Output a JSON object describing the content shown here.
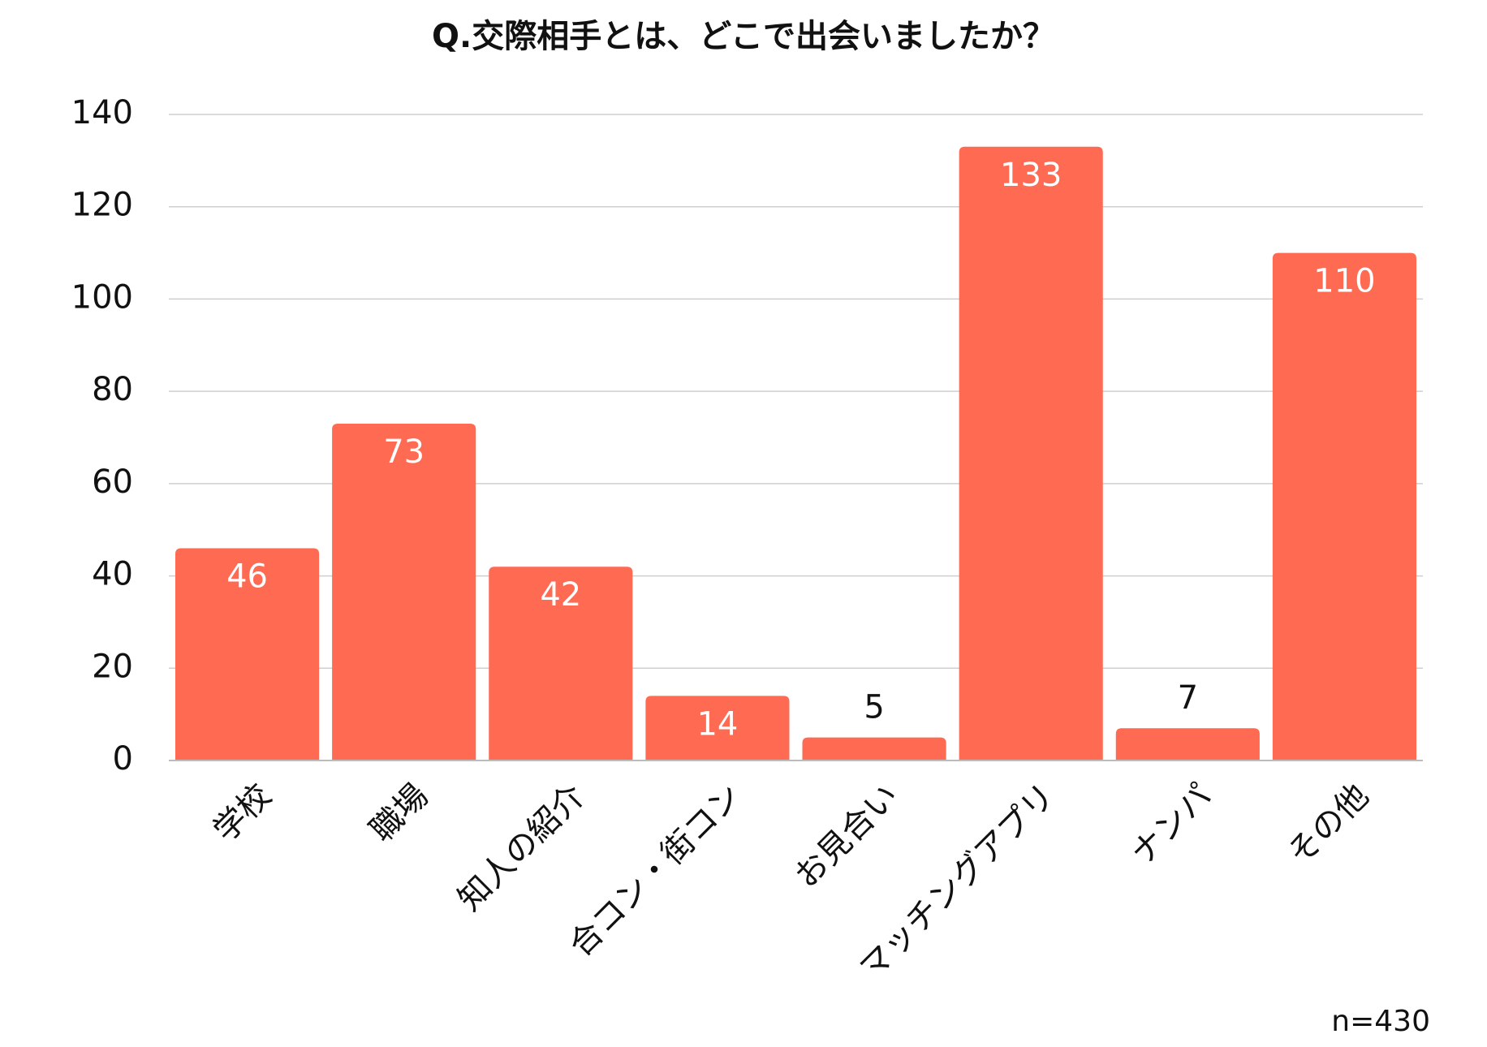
{
  "chart_data": {
    "type": "bar",
    "title": "Q.交際相手とは、どこで出会いましたか？",
    "categories": [
      "学校",
      "職場",
      "知人の紹介",
      "合コン・街コン",
      "お見合い",
      "マッチングアプリ",
      "ナンパ",
      "その他"
    ],
    "values": [
      46,
      73,
      42,
      14,
      5,
      133,
      7,
      110
    ],
    "color": "#ff6a53",
    "ylim": [
      0,
      140
    ],
    "yticks": [
      0,
      20,
      40,
      60,
      80,
      100,
      120,
      140
    ],
    "grid": true,
    "note": "n=430"
  }
}
